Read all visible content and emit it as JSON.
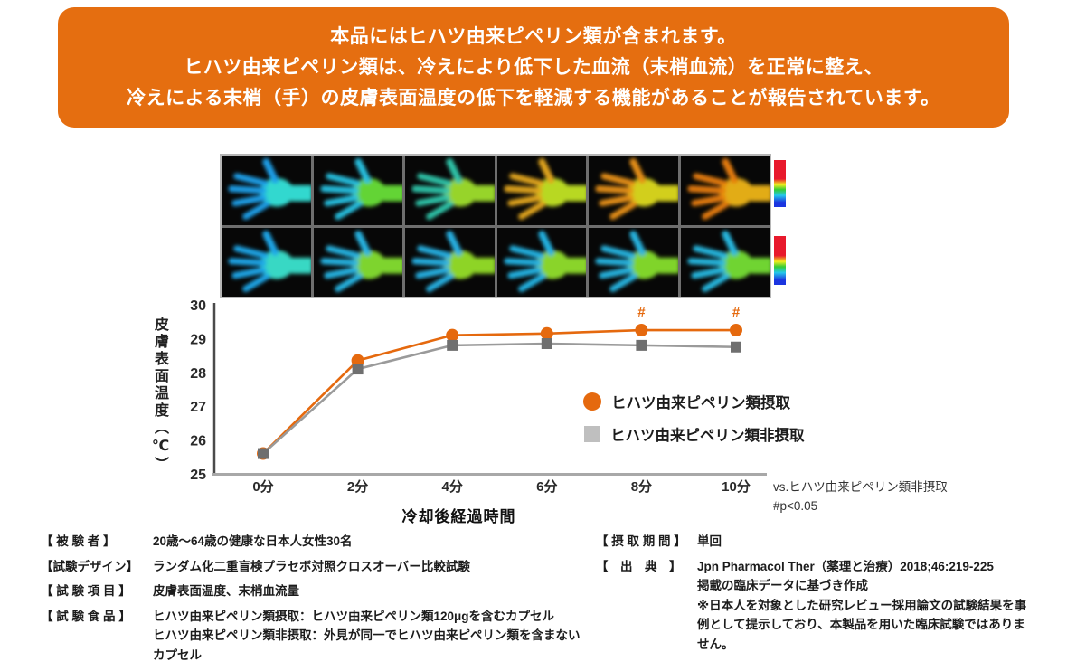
{
  "banner": {
    "bg_color": "#E56E10",
    "text_color": "#ffffff",
    "lines": [
      "本品にはヒハツ由来ピペリン類が含まれます。",
      "ヒハツ由来ピペリン類は、冷えにより低下した血流（末梢血流）を正常に整え、",
      "冷えによる末梢（手）の皮膚表面温度の低下を軽減する機能があることが報告されています。"
    ]
  },
  "thermal": {
    "grid": {
      "rows": 2,
      "cols": 6
    },
    "scale_colors": [
      "#e8192c",
      "#f2ed1e",
      "#35cc35",
      "#25c8ea",
      "#1b35e0"
    ],
    "cells": [
      [
        {
          "palm": "#30d8cf",
          "fingers": "#1f9fe8"
        },
        {
          "palm": "#63d436",
          "fingers": "#26bfdf"
        },
        {
          "palm": "#97d42c",
          "fingers": "#2fc3a8"
        },
        {
          "palm": "#b8d822",
          "fingers": "#e0a41c"
        },
        {
          "palm": "#d2cf1e",
          "fingers": "#e58f16"
        },
        {
          "palm": "#e2ac14",
          "fingers": "#e57b10"
        }
      ],
      [
        {
          "palm": "#38d8c4",
          "fingers": "#1fa6e8"
        },
        {
          "palm": "#7ed42e",
          "fingers": "#25b4e2"
        },
        {
          "palm": "#8ed428",
          "fingers": "#25b0e2"
        },
        {
          "palm": "#8ad42a",
          "fingers": "#24b2e2"
        },
        {
          "palm": "#80d42c",
          "fingers": "#26b4e0"
        },
        {
          "palm": "#70d433",
          "fingers": "#28b8e0"
        }
      ]
    ]
  },
  "chart_data": {
    "type": "line",
    "title": "",
    "categories": [
      "0分",
      "2分",
      "4分",
      "6分",
      "8分",
      "10分"
    ],
    "series": [
      {
        "name": "ヒハツ由来ピペリン類摂取",
        "marker": "circle",
        "color": "#E5690E",
        "marker_color": "#E5690E",
        "legend_color": "#E5690E",
        "values": [
          25.6,
          28.35,
          29.1,
          29.15,
          29.25,
          29.25
        ],
        "point_annotations": [
          "",
          "",
          "",
          "",
          "#",
          "#"
        ]
      },
      {
        "name": "ヒハツ由来ピペリン類非摂取",
        "marker": "square",
        "color": "#9a9a9a",
        "marker_color": "#6f6f6f",
        "legend_color": "#bfbfbf",
        "values": [
          25.6,
          28.1,
          28.8,
          28.85,
          28.8,
          28.75
        ],
        "point_annotations": [
          "",
          "",
          "",
          "",
          "",
          ""
        ]
      }
    ],
    "ylabel": "皮膚表面温度（℃）",
    "xlabel": "冷却後経過時間",
    "ylim": [
      25,
      30
    ],
    "yticks": [
      30,
      29,
      28,
      27,
      26,
      25
    ],
    "grid": false,
    "legend_position": "middle-right",
    "annotation_color": "#E5690E",
    "note_lines": [
      "vs.ヒハツ由来ピペリン類非摂取",
      "#p<0.05"
    ]
  },
  "study_info": {
    "left": [
      {
        "label": "【 被 験 者 】",
        "value": "20歳～64歳の健康な日本人女性30名"
      },
      {
        "label": "【試験デザイン】",
        "value": "ランダム化二重盲検プラセボ対照クロスオーバー比較試験"
      },
      {
        "label": "【 試 験 項 目 】",
        "value": "皮膚表面温度、末梢血流量"
      },
      {
        "label": "【 試 験 食 品 】",
        "value": "ヒハツ由来ピペリン類摂取：ヒハツ由来ピペリン類120μgを含むカプセル\nヒハツ由来ピペリン類非摂取：外見が同一でヒハツ由来ピペリン類を含まないカプセル"
      }
    ],
    "right": [
      {
        "label": "【 摂 取 期 間 】",
        "value": "単回"
      },
      {
        "label": "【　出　典　】",
        "value": "Jpn Pharmacol Ther（薬理と治療）2018;46:219-225\n掲載の臨床データに基づき作成\n※日本人を対象とした研究レビュー採用論文の試験結果を事例として提示しており、本製品を用いた臨床試験ではありません。"
      }
    ]
  }
}
